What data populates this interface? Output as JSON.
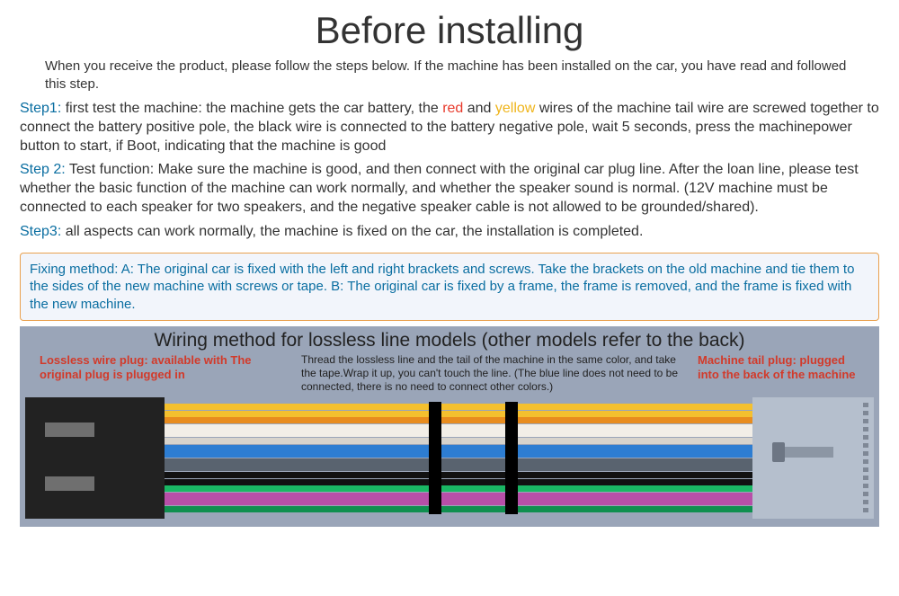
{
  "title": "Before installing",
  "intro": "When you receive the product, please follow the steps below. If the machine has been installed on the car, you have read and followed this step.",
  "step1": {
    "label": "Step1:",
    "before_red": " first test the machine: the machine gets the car battery, the ",
    "red": "red",
    "between": " and ",
    "yellow": "yellow",
    "after_yellow": " wires of the machine tail wire are screwed together to connect the battery positive pole, the black wire is connected to the battery negative pole, wait 5 seconds, press the machinepower button to start, if Boot, indicating that the machine is good"
  },
  "step2": {
    "label": "Step 2:",
    "text": " Test function: Make sure the machine is good, and then connect with the original car plug line. After the loan line, please test whether the basic function of the machine can work normally, and whether the speaker sound is normal. (12V machine must be connected to each speaker for two speakers, and the negative speaker cable is not allowed to be grounded/shared)."
  },
  "step3": {
    "label": "Step3:",
    "text": " all aspects can work normally, the machine is fixed on the car, the installation is completed."
  },
  "fixing": "Fixing method: A: The original car is fixed with the left and right brackets and screws. Take the brackets on the old machine and tie them to the sides of the new machine with screws or tape. B: The original car is fixed by a frame, the frame is removed, and the frame is fixed with the new machine.",
  "wiring": {
    "title": "Wiring method for lossless line models (other models refer to the back)",
    "note_left": "Lossless wire plug: available with\nThe original plug is plugged in",
    "note_center": "Thread the lossless line and the tail of the machine in the same color, and take the tape.Wrap it up, you can't touch the line.\n (The blue line does not need to be connected, there is no need to connect other colors.)",
    "note_right": "Machine tail plug: plugged into the back of the machine"
  },
  "diagram": {
    "wire_colors": [
      "#f4c02e",
      "#f4c02e",
      "#e88c1e",
      "#f2eee7",
      "#f2eee7",
      "#d7d3cc",
      "#2d7dd2",
      "#2d7dd2",
      "#59636f",
      "#59636f",
      "#111111",
      "#111111",
      "#1ab764",
      "#b74fa8",
      "#b74fa8",
      "#0f8f4f"
    ],
    "wire_top_start": 2,
    "wire_gap": 7.6,
    "right_slot_count": 14,
    "right_slot_top_start": 6,
    "right_slot_gap": 9,
    "right_slot_height": 5
  }
}
